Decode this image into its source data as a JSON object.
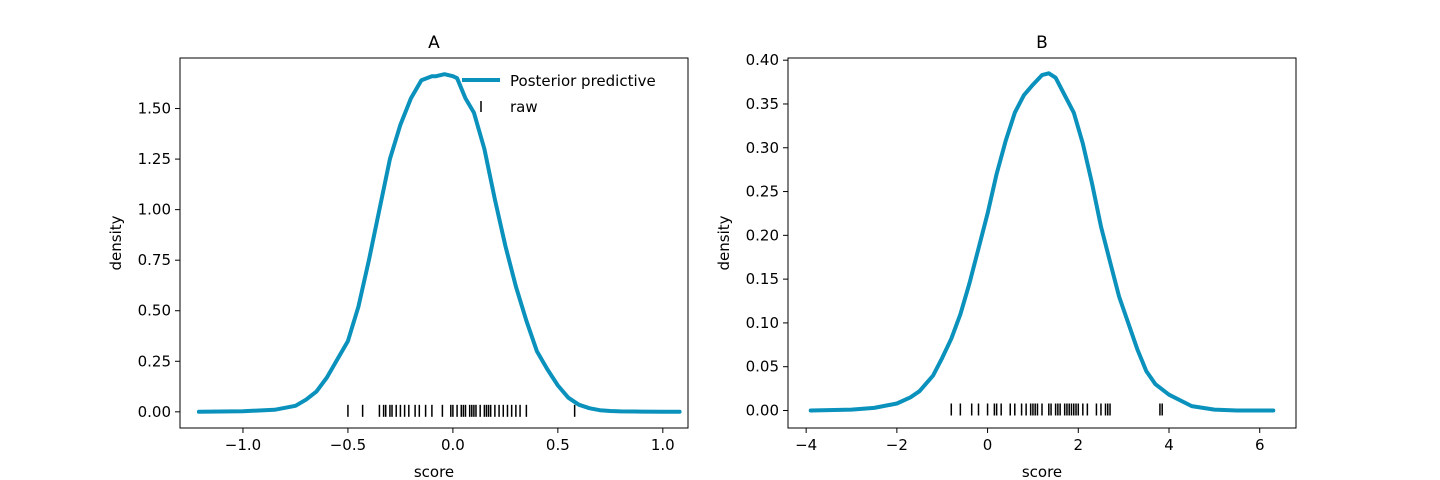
{
  "figure": {
    "line_color": "#0a92bd",
    "rug_color": "#000000"
  },
  "chart_data": [
    {
      "type": "line",
      "title": "A",
      "xlabel": "score",
      "ylabel": "density",
      "xlim": [
        -1.3,
        1.12
      ],
      "ylim": [
        -0.08,
        1.75
      ],
      "xticks": [
        -1.0,
        -0.5,
        0.0,
        0.5,
        1.0
      ],
      "xtick_labels": [
        "−1.0",
        "−0.5",
        "0.0",
        "0.5",
        "1.0"
      ],
      "yticks": [
        0.0,
        0.25,
        0.5,
        0.75,
        1.0,
        1.25,
        1.5
      ],
      "ytick_labels": [
        "0.00",
        "0.25",
        "0.50",
        "0.75",
        "1.00",
        "1.25",
        "1.50"
      ],
      "grid": false,
      "legend": {
        "placement": "top-right",
        "entries": [
          "Posterior predictive",
          "raw"
        ]
      },
      "series": [
        {
          "name": "Posterior predictive",
          "x": [
            -1.21,
            -1.0,
            -0.85,
            -0.75,
            -0.7,
            -0.65,
            -0.6,
            -0.55,
            -0.5,
            -0.45,
            -0.4,
            -0.35,
            -0.3,
            -0.25,
            -0.2,
            -0.15,
            -0.1,
            -0.08,
            -0.06,
            -0.04,
            -0.02,
            0.0,
            0.02,
            0.04,
            0.06,
            0.1,
            0.15,
            0.2,
            0.25,
            0.3,
            0.35,
            0.4,
            0.45,
            0.5,
            0.55,
            0.6,
            0.65,
            0.7,
            0.75,
            0.8,
            0.9,
            1.0,
            1.08
          ],
          "y": [
            0.0,
            0.003,
            0.01,
            0.03,
            0.06,
            0.1,
            0.17,
            0.26,
            0.35,
            0.52,
            0.75,
            1.0,
            1.25,
            1.42,
            1.55,
            1.64,
            1.66,
            1.66,
            1.665,
            1.67,
            1.665,
            1.66,
            1.65,
            1.6,
            1.55,
            1.48,
            1.3,
            1.05,
            0.82,
            0.62,
            0.45,
            0.3,
            0.21,
            0.13,
            0.07,
            0.035,
            0.018,
            0.008,
            0.004,
            0.002,
            0.001,
            0.0,
            0.0
          ]
        },
        {
          "name": "raw",
          "type": "rug",
          "x": [
            -0.5,
            -0.43,
            -0.35,
            -0.33,
            -0.32,
            -0.3,
            -0.29,
            -0.27,
            -0.25,
            -0.23,
            -0.21,
            -0.18,
            -0.16,
            -0.13,
            -0.1,
            -0.05,
            -0.01,
            0.0,
            0.02,
            0.04,
            0.05,
            0.06,
            0.08,
            0.09,
            0.1,
            0.11,
            0.13,
            0.15,
            0.16,
            0.17,
            0.18,
            0.2,
            0.22,
            0.24,
            0.26,
            0.28,
            0.3,
            0.32,
            0.35,
            0.58
          ],
          "y": 0.0
        }
      ]
    },
    {
      "type": "line",
      "title": "B",
      "xlabel": "score",
      "ylabel": "density",
      "xlim": [
        -4.4,
        6.8
      ],
      "ylim": [
        -0.02,
        0.4025
      ],
      "xticks": [
        -4,
        -2,
        0,
        2,
        4,
        6
      ],
      "xtick_labels": [
        "−4",
        "−2",
        "0",
        "2",
        "4",
        "6"
      ],
      "yticks": [
        0.0,
        0.05,
        0.1,
        0.15,
        0.2,
        0.25,
        0.3,
        0.35,
        0.4
      ],
      "ytick_labels": [
        "0.00",
        "0.05",
        "0.10",
        "0.15",
        "0.20",
        "0.25",
        "0.30",
        "0.35",
        "0.40"
      ],
      "grid": false,
      "series": [
        {
          "name": "Posterior predictive",
          "x": [
            -3.9,
            -3.0,
            -2.5,
            -2.0,
            -1.7,
            -1.5,
            -1.2,
            -1.0,
            -0.8,
            -0.6,
            -0.4,
            -0.2,
            0.0,
            0.2,
            0.4,
            0.6,
            0.8,
            1.0,
            1.2,
            1.35,
            1.5,
            1.7,
            1.9,
            2.1,
            2.3,
            2.5,
            2.7,
            2.9,
            3.1,
            3.3,
            3.5,
            3.7,
            4.0,
            4.5,
            5.0,
            5.5,
            6.3
          ],
          "y": [
            0.0,
            0.001,
            0.003,
            0.008,
            0.015,
            0.022,
            0.04,
            0.06,
            0.082,
            0.11,
            0.145,
            0.185,
            0.225,
            0.27,
            0.308,
            0.34,
            0.36,
            0.372,
            0.383,
            0.385,
            0.38,
            0.36,
            0.34,
            0.305,
            0.26,
            0.21,
            0.17,
            0.13,
            0.1,
            0.07,
            0.045,
            0.03,
            0.018,
            0.005,
            0.001,
            0.0,
            0.0
          ]
        },
        {
          "name": "raw",
          "type": "rug",
          "x": [
            -0.8,
            -0.6,
            -0.35,
            -0.2,
            0.0,
            0.15,
            0.2,
            0.3,
            0.5,
            0.6,
            0.75,
            0.85,
            0.95,
            1.0,
            1.05,
            1.1,
            1.2,
            1.35,
            1.4,
            1.5,
            1.55,
            1.6,
            1.7,
            1.75,
            1.8,
            1.85,
            1.9,
            1.95,
            2.0,
            2.1,
            2.2,
            2.4,
            2.5,
            2.6,
            2.65,
            2.7,
            3.8,
            3.85
          ],
          "y": 0.0
        }
      ]
    }
  ]
}
